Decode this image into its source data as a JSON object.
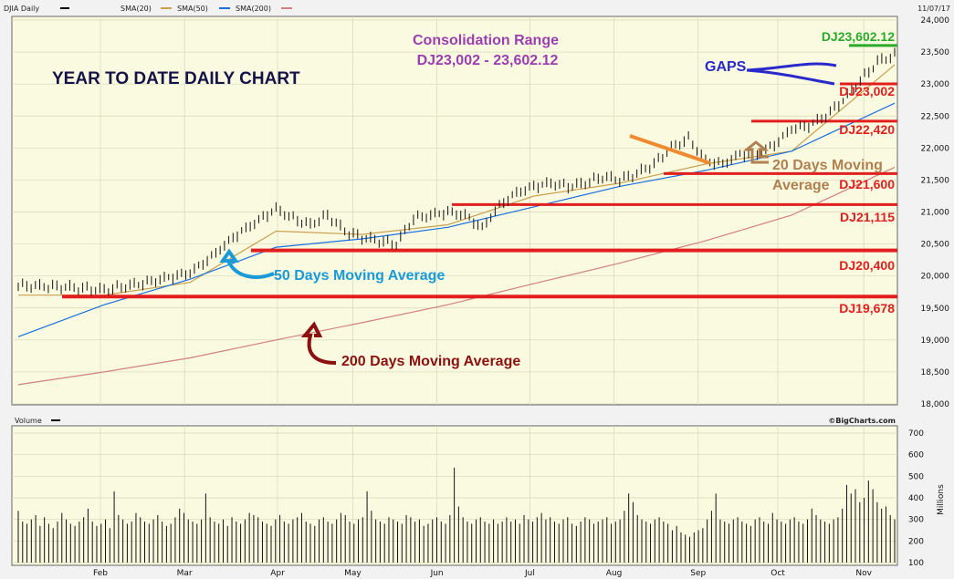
{
  "header": {
    "symbol": "DJIA Daily",
    "legend": [
      "SMA(20)",
      "SMA(50)",
      "SMA(200)"
    ],
    "legend_colors": [
      "#c8a050",
      "#1a6fdf",
      "#d08080"
    ],
    "date": "11/07/17"
  },
  "volume_header": {
    "label": "Volume",
    "credit": "©BigCharts.com",
    "unit": "Millions"
  },
  "annotations": {
    "title": "YEAR TO DATE DAILY CHART",
    "consolidation_line1": "Consolidation Range",
    "consolidation_line2": "DJ23,002 - 23,602.12",
    "gaps": "GAPS",
    "ma50": "50 Days Moving Average",
    "ma200": "200 Days Moving Average",
    "ma20_line1": "20 Days Moving",
    "ma20_line2": "Average",
    "level_23602": "DJ23,602.12",
    "level_23002": "DJ23,002",
    "level_22420": "DJ22,420",
    "level_21600": "DJ21,600",
    "level_21115": "DJ21,115",
    "level_20400": "DJ20,400",
    "level_19678": "DJ19,678"
  },
  "colors": {
    "plot_bg": "#fafae0",
    "grid": "#d6d6b8",
    "support": "#e21e1e",
    "sma20": "#c8a050",
    "sma50": "#1a6fdf",
    "sma200": "#d08080",
    "green_level": "#2aaa2a",
    "title_navy": "#14144a",
    "purple": "#9b3fb0",
    "blue_ann": "#2a2acc",
    "cyan_ann": "#1a9ad6",
    "maroon": "#8b1010",
    "brown": "#b08050",
    "orange": "#f08a30"
  },
  "chart_data": {
    "type": "line",
    "title": "YEAR TO DATE DAILY CHART",
    "x_labels": [
      "Feb",
      "Mar",
      "Apr",
      "May",
      "Jun",
      "Jul",
      "Aug",
      "Sep",
      "Oct",
      "Nov"
    ],
    "ylim": [
      18000,
      24000
    ],
    "yticks": [
      "24,000",
      "23,500",
      "23,000",
      "22,500",
      "22,000",
      "21,500",
      "21,000",
      "20,500",
      "20,000",
      "19,500",
      "19,000",
      "18,500",
      "18,000"
    ],
    "grid": true,
    "series": [
      {
        "name": "DJIA Daily",
        "x": [
          0,
          10,
          20,
          30,
          40,
          45,
          50,
          55,
          60,
          64,
          68,
          72,
          76,
          80,
          84,
          88,
          92,
          96,
          100,
          104,
          108,
          112,
          116,
          120,
          124,
          128,
          132,
          136,
          140,
          144,
          148,
          152,
          156,
          160,
          164,
          168,
          172,
          176,
          180,
          184,
          188,
          192,
          196,
          200,
          204
        ],
        "values": [
          19850,
          19830,
          19780,
          19900,
          20050,
          20300,
          20600,
          20830,
          21050,
          20900,
          20800,
          20950,
          20700,
          20600,
          20550,
          20500,
          20900,
          20950,
          21000,
          20950,
          20750,
          21100,
          21300,
          21400,
          21450,
          21400,
          21450,
          21550,
          21500,
          21600,
          21750,
          22000,
          22150,
          21800,
          21750,
          21900,
          21900,
          22050,
          22300,
          22350,
          22500,
          22750,
          23050,
          23350,
          23450
        ]
      },
      {
        "name": "SMA(20)",
        "x": [
          0,
          20,
          40,
          60,
          80,
          100,
          120,
          140,
          160,
          180,
          204
        ],
        "values": [
          19700,
          19700,
          19900,
          20700,
          20650,
          20800,
          21250,
          21450,
          21750,
          21950,
          23300
        ]
      },
      {
        "name": "SMA(50)",
        "x": [
          0,
          20,
          40,
          60,
          80,
          100,
          120,
          140,
          160,
          180,
          204
        ],
        "values": [
          19050,
          19550,
          19950,
          20450,
          20580,
          20760,
          21080,
          21400,
          21650,
          21950,
          22700
        ]
      },
      {
        "name": "SMA(200)",
        "x": [
          0,
          20,
          40,
          60,
          80,
          100,
          120,
          140,
          160,
          180,
          204
        ],
        "values": [
          18300,
          18500,
          18720,
          19000,
          19270,
          19550,
          19880,
          20200,
          20550,
          20950,
          21700
        ]
      }
    ],
    "support_levels": [
      23602.12,
      23002,
      22420,
      21600,
      21115,
      20400,
      19678
    ],
    "volume": {
      "ylim": [
        100,
        700
      ],
      "yticks": [
        "700",
        "600",
        "500",
        "400",
        "300",
        "200",
        "100"
      ],
      "unit": "Millions",
      "values": [
        340,
        290,
        280,
        300,
        320,
        270,
        310,
        280,
        260,
        290,
        330,
        300,
        280,
        270,
        290,
        310,
        350,
        290,
        270,
        280,
        300,
        260,
        430,
        320,
        300,
        280,
        290,
        330,
        310,
        290,
        280,
        300,
        320,
        290,
        270,
        280,
        310,
        350,
        330,
        300,
        290,
        280,
        300,
        420,
        310,
        290,
        280,
        300,
        270,
        310,
        290,
        280,
        300,
        330,
        320,
        310,
        290,
        280,
        270,
        300,
        320,
        290,
        280,
        300,
        310,
        330,
        290,
        280,
        270,
        300,
        310,
        290,
        280,
        300,
        330,
        320,
        290,
        280,
        300,
        310,
        430,
        340,
        300,
        290,
        280,
        310,
        300,
        290,
        280,
        320,
        310,
        290,
        300,
        270,
        280,
        300,
        310,
        290,
        280,
        320,
        540,
        360,
        310,
        290,
        280,
        300,
        310,
        290,
        280,
        300,
        280,
        290,
        310,
        290,
        300,
        280,
        320,
        300,
        290,
        310,
        330,
        300,
        310,
        290,
        280,
        300,
        310,
        280,
        270,
        290,
        310,
        300,
        280,
        290,
        300,
        310,
        280,
        290,
        300,
        340,
        420,
        380,
        320,
        300,
        290,
        280,
        300,
        310,
        290,
        280,
        250,
        270,
        240,
        230,
        220,
        240,
        250,
        260,
        300,
        340,
        420,
        300,
        290,
        280,
        300,
        310,
        290,
        280,
        270,
        300,
        310,
        290,
        280,
        330,
        300,
        290,
        280,
        300,
        310,
        290,
        280,
        300,
        350,
        320,
        300,
        290,
        280,
        300,
        310,
        350,
        460,
        420,
        440,
        380,
        400,
        480,
        440,
        380,
        350,
        360,
        320,
        300
      ]
    }
  }
}
